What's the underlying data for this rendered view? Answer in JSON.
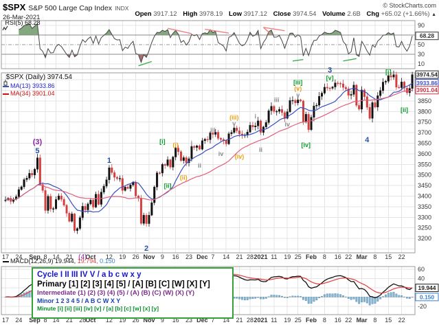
{
  "header": {
    "symbol": "$SPX",
    "name": "S&P 500 Large Cap Index",
    "exchange": "INDX",
    "date": "26-Mar-2021",
    "copyright": "© StockCharts.com",
    "arrow": "▲",
    "quote": [
      {
        "label": "Open",
        "value": "3917.12"
      },
      {
        "label": "High",
        "value": "3978.19"
      },
      {
        "label": "Low",
        "value": "3917.12"
      },
      {
        "label": "Close",
        "value": "3974.54"
      },
      {
        "label": "Volume",
        "value": "2.6B"
      },
      {
        "label": "Chg",
        "value": "+65.02 (+1.66%)"
      }
    ]
  },
  "rsi": {
    "legend": "RSI(5) 68.28"
  },
  "main": {
    "legend_title": "$SPX (Daily) 3974.54",
    "legend_ma13": "MA(13) 3933.86",
    "legend_ma34": "MA(34) 3901.04"
  },
  "macd": {
    "legend_name": "MACD(12,26,9)",
    "vals": [
      "19.944,",
      "19.794,",
      "0.150"
    ]
  },
  "wave_legend": {
    "cycle": "Cycle I II III IV V / a b c w x y",
    "primary": "Primary [1] [2] [3] [4] [5] / [A] [B] [C] [W] [X] [Y]",
    "intermediate": "Intermediate (1) (2) (3) (4) (5) / (A) (B) (C) (W) (X) (Y)",
    "minor": "Minor 1 2 3 4 5 / A B C W X Y",
    "minute": "Minute [i] [ii] [iii] [iv] [v] / [a] [b] [c] [w] [x] [y]"
  },
  "chart_data": {
    "type": "candlestick",
    "title": "$SPX (Daily)",
    "ylim": [
      3132,
      3983
    ],
    "y_ticks": [
      3200,
      3250,
      3300,
      3350,
      3400,
      3450,
      3500,
      3550,
      3600,
      3650,
      3700,
      3750,
      3800,
      3850
    ],
    "first_open": 3378,
    "closes": [
      3382,
      3390,
      3375,
      3385,
      3397,
      3431,
      3444,
      3478,
      3485,
      3508,
      3500,
      3527,
      3581,
      3455,
      3427,
      3332,
      3399,
      3339,
      3341,
      3384,
      3401,
      3385,
      3357,
      3319,
      3281,
      3316,
      3237,
      3247,
      3298,
      3352,
      3335,
      3363,
      3381,
      3348,
      3409,
      3361,
      3419,
      3447,
      3477,
      3534,
      3511,
      3489,
      3483,
      3484,
      3427,
      3443,
      3436,
      3453,
      3465,
      3401,
      3391,
      3271,
      3310,
      3270,
      3310,
      3369,
      3443,
      3510,
      3509,
      3550,
      3545,
      3572,
      3537,
      3585,
      3627,
      3610,
      3568,
      3582,
      3558,
      3577,
      3635,
      3630,
      3638,
      3622,
      3662,
      3669,
      3667,
      3699,
      3692,
      3702,
      3673,
      3668,
      3663,
      3647,
      3695,
      3701,
      3722,
      3709,
      3694,
      3687,
      3690,
      3703,
      3735,
      3727,
      3732,
      3756,
      3701,
      3727,
      3748,
      3804,
      3825,
      3800,
      3801,
      3810,
      3795,
      3768,
      3799,
      3852,
      3853,
      3841,
      3855,
      3850,
      3751,
      3787,
      3714,
      3773,
      3826,
      3830,
      3872,
      3887,
      3915,
      3911,
      3910,
      3916,
      3935,
      3933,
      3931,
      3914,
      3907,
      3877,
      3881,
      3925,
      3829,
      3811,
      3902,
      3870,
      3820,
      3768,
      3842,
      3821,
      3875,
      3899,
      3939,
      3943,
      3969,
      3963,
      3974,
      3915,
      3913,
      3940,
      3911,
      3889,
      3909,
      3974.54
    ],
    "ma_periods": [
      13,
      34
    ],
    "boxes": {
      "close": "3974.54",
      "ma13": "3933.86",
      "ma34": "3901.04",
      "rsi": "68.28",
      "macd": "19.944",
      "hist": "0.150"
    },
    "x_ticks": {
      "indices": [
        0,
        5,
        11,
        15,
        19,
        24,
        29,
        32,
        39,
        44,
        49,
        54,
        59,
        64,
        69,
        74,
        78,
        83,
        88,
        92,
        96,
        101,
        106,
        110,
        115,
        120,
        125,
        129,
        134,
        139,
        144,
        149
      ],
      "labels_main": [
        "17",
        "24",
        "Sep",
        "8",
        "14",
        "21",
        "(4)",
        "Oct",
        "12",
        "19",
        "26",
        "Nov",
        "9",
        "16",
        "23",
        "Dec",
        "7",
        "14",
        "21",
        "28",
        "2021",
        "11",
        "19",
        "25",
        "Feb",
        "8",
        "16",
        "22",
        "Mar",
        "8",
        "15",
        "22"
      ],
      "labels_macd": [
        "17",
        "24",
        "Sep",
        "8",
        "14",
        "21",
        "28",
        "Oct",
        "12",
        "19",
        "26",
        "Nov",
        "9",
        "16",
        "23",
        "Dec",
        "7",
        "14",
        "21",
        "28",
        "2021",
        "11",
        "19",
        "25",
        "Feb",
        "8",
        "16",
        "22",
        "Mar",
        "8",
        "15",
        "22"
      ],
      "bold": [
        "Sep",
        "Oct",
        "Nov",
        "Dec",
        "2021",
        "Feb",
        "Mar"
      ]
    },
    "annotations": [
      {
        "t": "(3)",
        "i": 12,
        "p": 3655,
        "c": "purple"
      },
      {
        "t": "5",
        "i": 12,
        "p": 3612,
        "c": "blue"
      },
      {
        "t": "1",
        "i": 39,
        "p": 3568,
        "c": "blue"
      },
      {
        "t": "2",
        "i": 53,
        "p": 3152,
        "c": "blue"
      },
      {
        "t": "[i]",
        "i": 59,
        "p": 3658,
        "c": "green"
      },
      {
        "t": "[ii]",
        "i": 61,
        "p": 3448,
        "c": "green"
      },
      {
        "t": "(i)",
        "i": 64,
        "p": 3642,
        "c": "orange"
      },
      {
        "t": "(ii)",
        "i": 67,
        "p": 3488,
        "c": "orange"
      },
      {
        "t": "i",
        "i": 70,
        "p": 3652,
        "c": "gray"
      },
      {
        "t": "ii",
        "i": 73,
        "p": 3545,
        "c": "gray"
      },
      {
        "t": "iii",
        "i": 78,
        "p": 3712,
        "c": "gray"
      },
      {
        "t": "iv",
        "i": 81,
        "p": 3600,
        "c": "gray"
      },
      {
        "t": "(iii)",
        "i": 86,
        "p": 3772,
        "c": "orange"
      },
      {
        "t": "v",
        "i": 86,
        "p": 3742,
        "c": "gray"
      },
      {
        "t": "(iv)",
        "i": 88,
        "p": 3586,
        "c": "orange"
      },
      {
        "t": "i",
        "i": 94,
        "p": 3776,
        "c": "gray"
      },
      {
        "t": "ii",
        "i": 96,
        "p": 3620,
        "c": "gray"
      },
      {
        "t": "iii",
        "i": 102,
        "p": 3855,
        "c": "gray"
      },
      {
        "t": "iv",
        "i": 106,
        "p": 3740,
        "c": "gray"
      },
      {
        "t": "v",
        "i": 110,
        "p": 3878,
        "c": "gray"
      },
      {
        "t": "(v)",
        "i": 110,
        "p": 3908,
        "c": "orange"
      },
      {
        "t": "[iii]",
        "i": 110,
        "p": 3938,
        "c": "green"
      },
      {
        "t": "[iv]",
        "i": 113,
        "p": 3642,
        "c": "green"
      },
      {
        "t": "[v]",
        "i": 122,
        "p": 3958,
        "c": "green"
      },
      {
        "t": "3",
        "i": 122,
        "p": 3994,
        "c": "blue"
      },
      {
        "t": "4",
        "i": 136,
        "p": 3664,
        "c": "blue"
      },
      {
        "t": "[i]",
        "i": 144,
        "p": 3988,
        "c": "green"
      },
      {
        "t": "[ii]",
        "i": 150,
        "p": 3808,
        "c": "green"
      }
    ],
    "rsi": {
      "period": 5,
      "last": 68.28,
      "overbought": 70,
      "oversold": 30,
      "midline": 50,
      "tick_values": [
        90,
        50,
        30,
        10
      ],
      "red_segments": [
        [
          61,
          84,
          70,
          73
        ],
        [
          75,
          82,
          84,
          74
        ],
        [
          97,
          86,
          105,
          79
        ],
        [
          97,
          86,
          100,
          71
        ]
      ],
      "green_segments": [
        [
          50,
          6,
          55,
          15
        ],
        [
          108,
          16,
          112,
          19
        ],
        [
          127,
          16,
          132,
          21
        ]
      ]
    },
    "macd": {
      "fast": 12,
      "slow": 26,
      "signal": 9,
      "last": [
        19.944,
        19.794,
        0.15
      ],
      "ylim": [
        -38,
        66
      ],
      "tick_values": [
        60,
        40,
        -20
      ],
      "grid_values": [
        60,
        40,
        20,
        0,
        -20
      ]
    },
    "colors": {
      "up": "#111111",
      "down": "#d23f3f",
      "ma13": "#3a4fc0",
      "ma34": "#e0607a",
      "rsi_line": "#444444",
      "rsi_fill_high": "#85a77f",
      "rsi_fill_low": "#a8706f",
      "macd_line": "#111111",
      "signal_line": "#e03c3c",
      "hist_fill": "#86b6d4",
      "hist_stroke": "#4a7fa0",
      "grid": "#e4e4e4",
      "border": "#9a9a9a",
      "axis_text": "#333333"
    },
    "ann_colors": {
      "blue": "#2b4fa2",
      "purple": "#8822aa",
      "green": "#089d2a",
      "orange": "#eda113",
      "gray": "#8a8a8a"
    }
  }
}
